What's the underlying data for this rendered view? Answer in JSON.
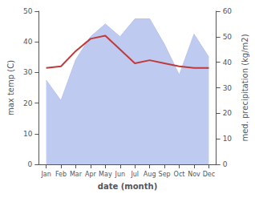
{
  "chart_data": {
    "type": "line",
    "xlabel": "date (month)",
    "ylabel": "max temp (C)",
    "y2label": "med. precipitation (kg/m2)",
    "categories": [
      "Jan",
      "Feb",
      "Mar",
      "Apr",
      "May",
      "Jun",
      "Jul",
      "Aug",
      "Sep",
      "Oct",
      "Nov",
      "Dec"
    ],
    "series": [
      {
        "type": "area",
        "axis": "y2",
        "color": "#b8c4ee",
        "values": [
          33,
          25,
          41,
          50,
          55,
          50,
          57,
          57,
          47,
          35,
          51,
          42
        ]
      },
      {
        "type": "line",
        "axis": "y",
        "color": "#c0393b",
        "values": [
          31.5,
          32.0,
          37.0,
          41.0,
          42.0,
          37.5,
          33.0,
          34.0,
          33.0,
          32.0,
          31.5,
          31.5
        ]
      }
    ],
    "ylim": [
      0,
      50
    ],
    "yticks": [
      0,
      10,
      20,
      30,
      40,
      50
    ],
    "y2lim": [
      0,
      60
    ],
    "y2ticks": [
      0,
      10,
      20,
      30,
      40,
      50,
      60
    ],
    "grid": false
  }
}
